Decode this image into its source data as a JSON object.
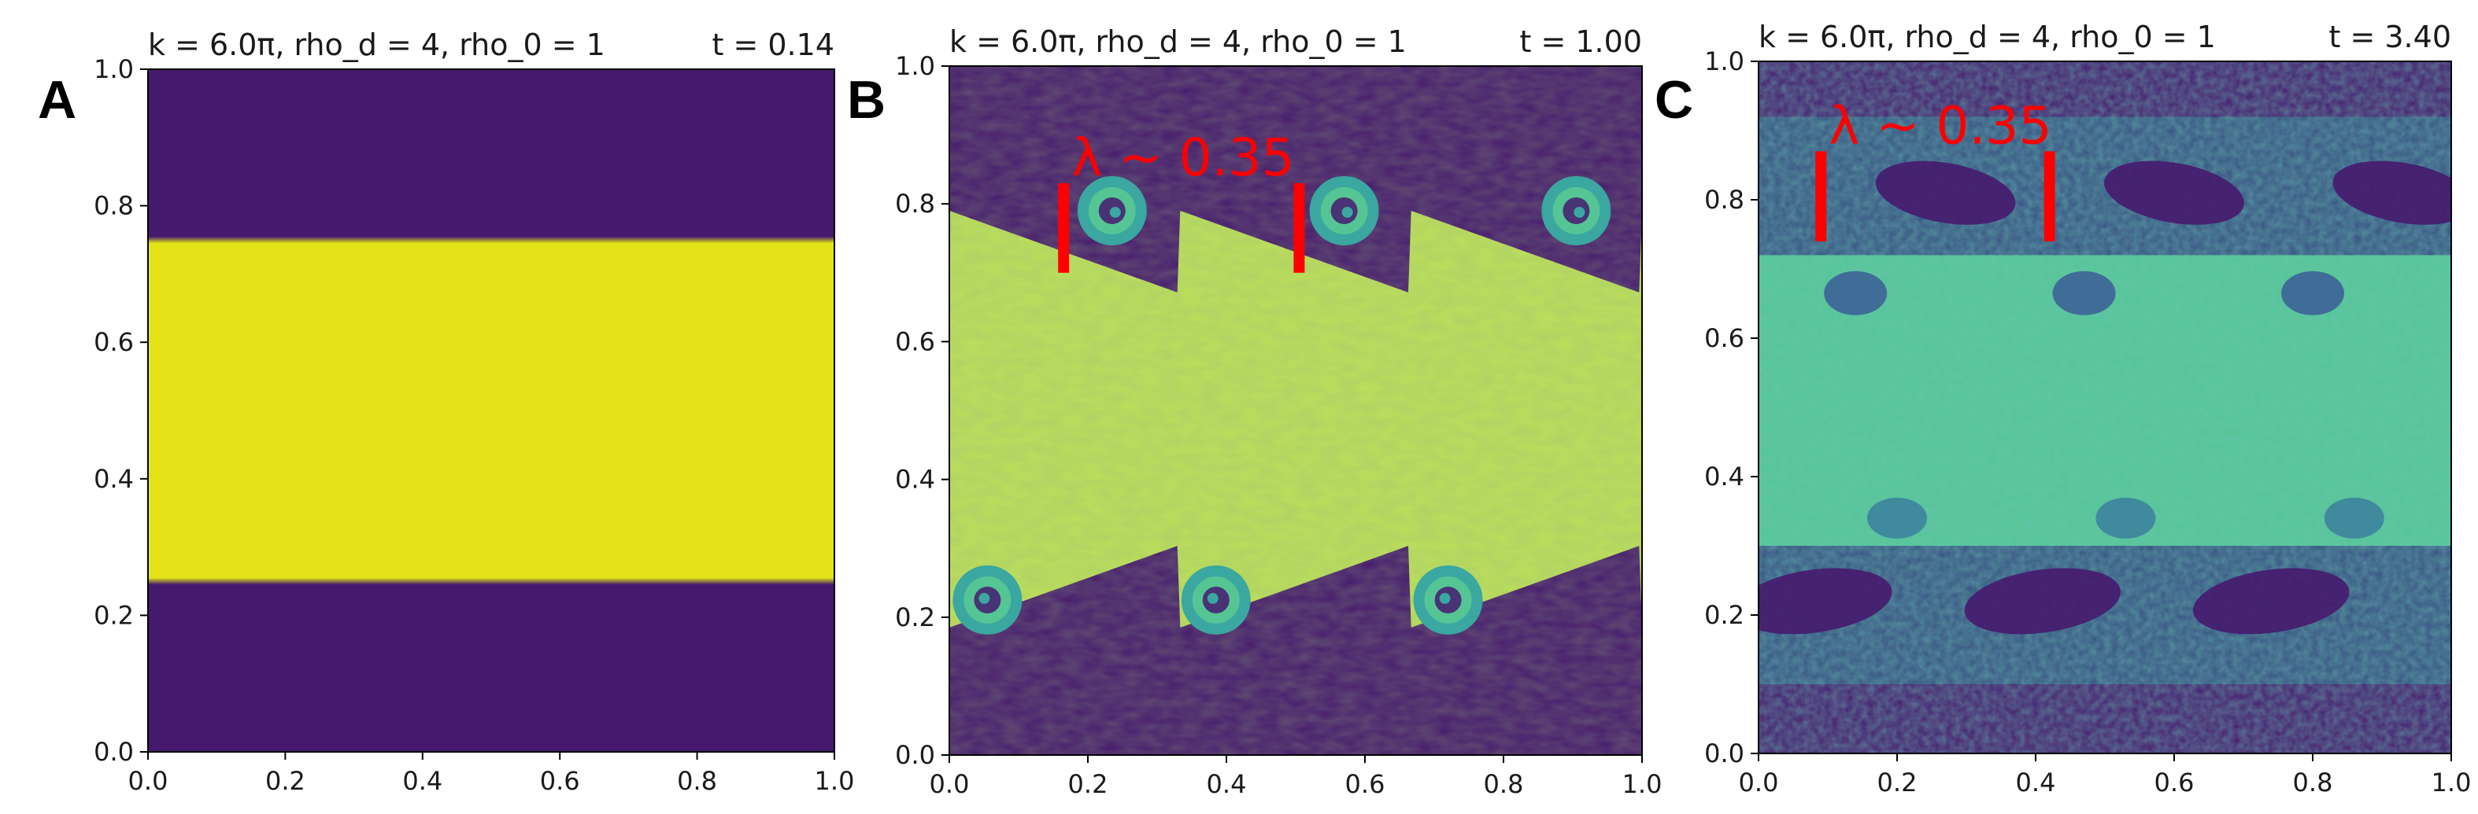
{
  "chart_data": [
    {
      "type": "heatmap",
      "panel_label": "A",
      "title_left": "k = 6.0π, rho_d = 4, rho_0 = 1",
      "title_right": "t = 0.14",
      "xlim": [
        0.0,
        1.0
      ],
      "ylim": [
        0.0,
        1.0
      ],
      "x_ticks": [
        "0.0",
        "0.2",
        "0.4",
        "0.6",
        "0.8",
        "1.0"
      ],
      "y_ticks": [
        "0.0",
        "0.2",
        "0.4",
        "0.6",
        "0.8",
        "1.0"
      ],
      "colormap": "viridis",
      "band": [
        0.25,
        0.75
      ],
      "state": "flat"
    },
    {
      "type": "heatmap",
      "panel_label": "B",
      "title_left": "k = 6.0π, rho_d = 4, rho_0 = 1",
      "title_right": "t = 1.00",
      "xlim": [
        0.0,
        1.0
      ],
      "ylim": [
        0.0,
        1.0
      ],
      "x_ticks": [
        "0.0",
        "0.2",
        "0.4",
        "0.6",
        "0.8",
        "1.0"
      ],
      "y_ticks": [
        "0.0",
        "0.2",
        "0.4",
        "0.6",
        "0.8",
        "1.0"
      ],
      "colormap": "viridis",
      "band": [
        0.25,
        0.75
      ],
      "state": "rolled",
      "annotation": {
        "text": "λ ~ 0.35",
        "markers_x": [
          0.165,
          0.505
        ],
        "marker_y": [
          0.7,
          0.83
        ]
      }
    },
    {
      "type": "heatmap",
      "panel_label": "C",
      "title_left": "k = 6.0π, rho_d = 4, rho_0 = 1",
      "title_right": "t = 3.40",
      "xlim": [
        0.0,
        1.0
      ],
      "ylim": [
        0.0,
        1.0
      ],
      "x_ticks": [
        "0.0",
        "0.2",
        "0.4",
        "0.6",
        "0.8",
        "1.0"
      ],
      "y_ticks": [
        "0.0",
        "0.2",
        "0.4",
        "0.6",
        "0.8",
        "1.0"
      ],
      "colormap": "viridis",
      "band": [
        0.25,
        0.75
      ],
      "state": "mixed",
      "annotation": {
        "text": "λ ~ 0.35",
        "markers_x": [
          0.09,
          0.42
        ],
        "marker_y": [
          0.74,
          0.87
        ]
      }
    }
  ],
  "colors": {
    "purple": "#46196e",
    "yellow": "#e3e317",
    "yellow_green": "#bde05a",
    "teal": "#3aa7a0",
    "green_teal": "#55c596",
    "annotation": "#ff0000"
  }
}
